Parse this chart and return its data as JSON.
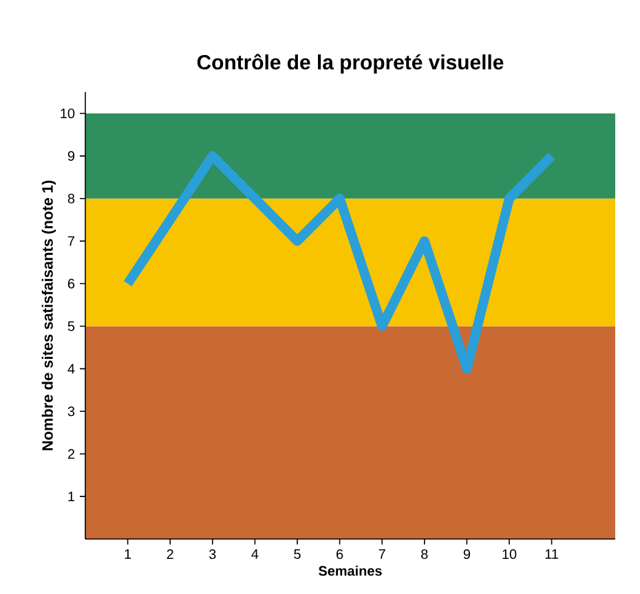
{
  "chart_data": {
    "type": "line",
    "title": "Contrôle de la propreté visuelle",
    "xlabel": "Semaines",
    "ylabel": "Nombre de sites satisfaisants (note 1)",
    "x": [
      1,
      2,
      3,
      4,
      5,
      6,
      7,
      8,
      9,
      10,
      11
    ],
    "series": [
      {
        "color": "#2b9fd8",
        "values": [
          6,
          7.5,
          9,
          8,
          7,
          8,
          5,
          7,
          4,
          8,
          9
        ]
      }
    ],
    "xlim": [
      0,
      12.5
    ],
    "ylim": [
      0,
      10.5
    ],
    "xticks": [
      1,
      2,
      3,
      4,
      5,
      6,
      7,
      8,
      9,
      10,
      11
    ],
    "yticks": [
      1,
      2,
      3,
      4,
      5,
      6,
      7,
      8,
      9,
      10
    ],
    "bands": [
      {
        "axis": "y",
        "from": 0,
        "to": 5,
        "color": "#c96a35"
      },
      {
        "axis": "y",
        "from": 5,
        "to": 8,
        "color": "#f8c400"
      },
      {
        "axis": "y",
        "from": 8,
        "to": 10,
        "color": "#2f8f5e"
      }
    ],
    "marker": "none",
    "line_style": "solid"
  }
}
